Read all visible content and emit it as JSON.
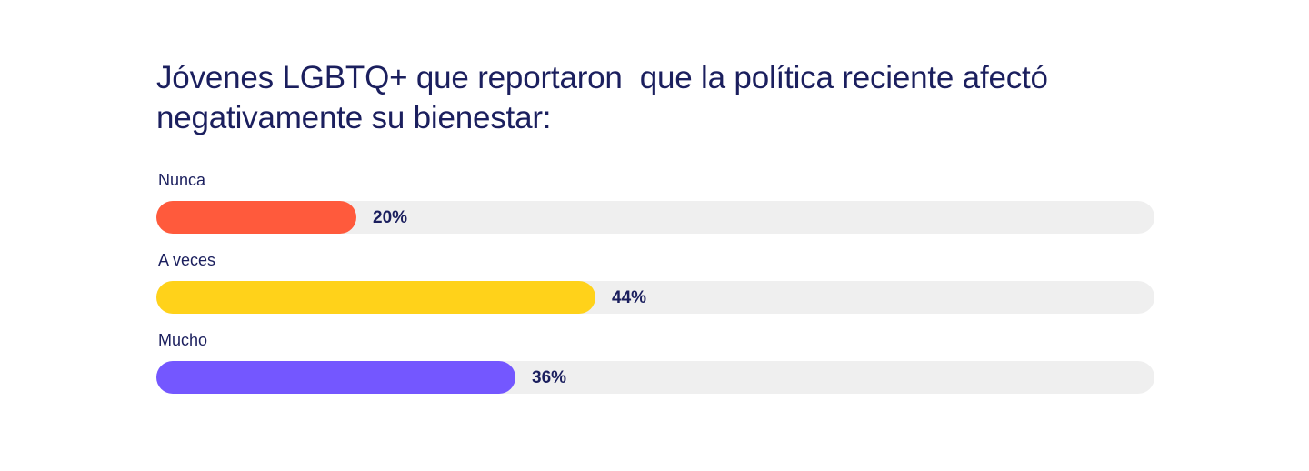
{
  "title": "Jóvenes LGBTQ+ que reportaron  que la política reciente afectó negativamente su bienestar:",
  "chart_data": {
    "type": "bar",
    "orientation": "horizontal",
    "title": "Jóvenes LGBTQ+ que reportaron  que la política reciente afectó negativamente su bienestar:",
    "categories": [
      "Nunca",
      "A veces",
      "Mucho"
    ],
    "values": [
      20,
      44,
      36
    ],
    "value_labels": [
      "20%",
      "44%",
      "36%"
    ],
    "colors": [
      "#ff5a3c",
      "#ffd21a",
      "#7457ff"
    ],
    "track_color": "#efefef",
    "xlim": [
      0,
      100
    ],
    "grid": false
  }
}
